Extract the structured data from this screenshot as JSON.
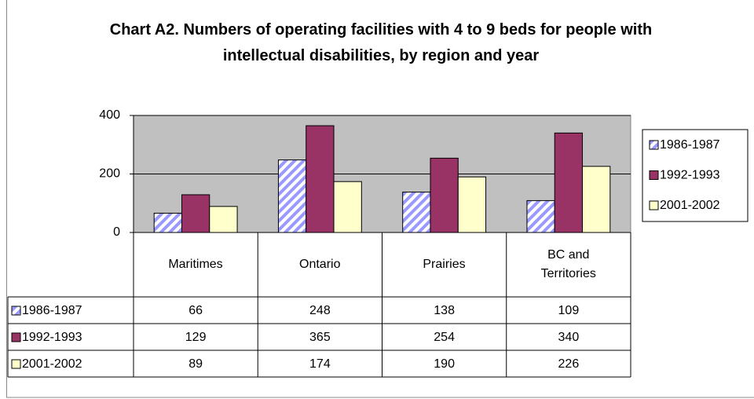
{
  "chart_data": {
    "type": "bar",
    "title": "Chart A2. Numbers of operating facilities with 4 to 9 beds for people with intellectual disabilities, by region and year",
    "categories": [
      "Maritimes",
      "Ontario",
      "Prairies",
      "BC and Territories"
    ],
    "series": [
      {
        "name": "1986-1987",
        "color": "#9999ff",
        "pattern": "diagonal stripes",
        "values": [
          66,
          248,
          138,
          109
        ]
      },
      {
        "name": "1992-1993",
        "color": "#993366",
        "values": [
          129,
          365,
          254,
          340
        ]
      },
      {
        "name": "2001-2002",
        "color": "#ffffcc",
        "values": [
          89,
          174,
          190,
          226
        ]
      }
    ],
    "ylim": [
      0,
      400
    ],
    "yticks": [
      0,
      200,
      400
    ],
    "grid": true,
    "legend": "right"
  }
}
